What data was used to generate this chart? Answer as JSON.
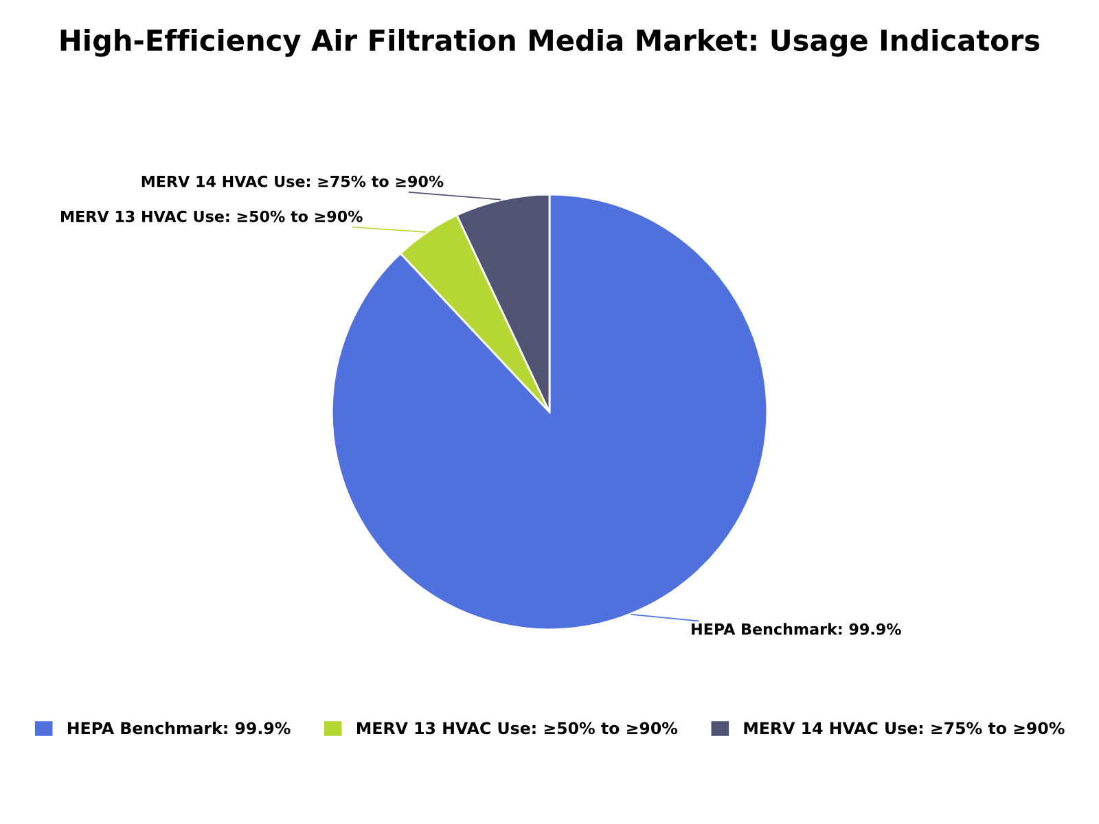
{
  "chart_data": {
    "type": "pie",
    "title": "High-Efficiency Air Filtration Media Market: Usage Indicators",
    "categories": [
      "HEPA Benchmark: 99.9%",
      "MERV 13 HVAC Use: ≥50% to ≥90%",
      "MERV 14 HVAC Use: ≥75% to ≥90%"
    ],
    "values": [
      88,
      5,
      7
    ],
    "colors": [
      "#5070dd",
      "#b6d634",
      "#505372"
    ],
    "legend": "bottom"
  }
}
